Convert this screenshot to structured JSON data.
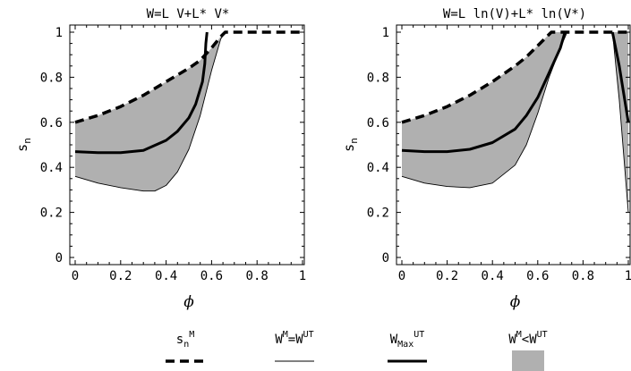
{
  "chart_data": [
    {
      "type": "area",
      "title": "W=L V+L* V*",
      "xlabel": "ϕ",
      "ylabel": "s_n",
      "xlim": [
        0,
        1
      ],
      "ylim": [
        0,
        1
      ],
      "xticks": [
        "0",
        "0.2",
        "0.4",
        "0.6",
        "0.8",
        "1"
      ],
      "yticks": [
        "0",
        "0.2",
        "0.4",
        "0.6",
        "0.8",
        "1"
      ],
      "series": [
        {
          "name": "sn^M",
          "style": "dashed-thick",
          "x": [
            0,
            0.1,
            0.2,
            0.3,
            0.4,
            0.5,
            0.55,
            0.6,
            0.64,
            0.66,
            1.0
          ],
          "y": [
            0.6,
            0.63,
            0.67,
            0.72,
            0.78,
            0.84,
            0.875,
            0.93,
            0.98,
            1.0,
            1.0
          ]
        },
        {
          "name": "W^M=W^UT",
          "style": "thin",
          "x": [
            0,
            0.1,
            0.2,
            0.3,
            0.35,
            0.4,
            0.45,
            0.5,
            0.55,
            0.6,
            0.64,
            0.66
          ],
          "y": [
            0.36,
            0.33,
            0.31,
            0.295,
            0.295,
            0.32,
            0.38,
            0.48,
            0.63,
            0.83,
            0.97,
            1.0
          ]
        },
        {
          "name": "W_Max^UT",
          "style": "thick",
          "x": [
            0,
            0.1,
            0.2,
            0.3,
            0.4,
            0.45,
            0.5,
            0.53,
            0.56,
            0.57,
            0.575,
            0.58
          ],
          "y": [
            0.47,
            0.465,
            0.465,
            0.475,
            0.52,
            0.56,
            0.62,
            0.68,
            0.78,
            0.86,
            0.95,
            1.0
          ]
        }
      ],
      "shaded_region": {
        "name": "W^M<W^UT",
        "x": [
          0,
          0.1,
          0.2,
          0.3,
          0.35,
          0.4,
          0.45,
          0.5,
          0.55,
          0.6,
          0.64,
          0.66
        ],
        "upper": [
          0.6,
          0.63,
          0.67,
          0.72,
          0.75,
          0.78,
          0.81,
          0.84,
          0.875,
          0.93,
          0.98,
          1.0
        ],
        "lower": [
          0.36,
          0.33,
          0.31,
          0.295,
          0.295,
          0.32,
          0.38,
          0.48,
          0.63,
          0.83,
          0.97,
          1.0
        ]
      }
    },
    {
      "type": "area",
      "title": "W=L ln(V)+L* ln(V*)",
      "xlabel": "ϕ",
      "ylabel": "s_n",
      "xlim": [
        0,
        1
      ],
      "ylim": [
        0,
        1
      ],
      "xticks": [
        "0",
        "0.2",
        "0.4",
        "0.6",
        "0.8",
        "1"
      ],
      "yticks": [
        "0",
        "0.2",
        "0.4",
        "0.6",
        "0.8",
        "1"
      ],
      "series": [
        {
          "name": "sn^M",
          "style": "dashed-thick",
          "x": [
            0,
            0.1,
            0.2,
            0.3,
            0.4,
            0.5,
            0.55,
            0.6,
            0.64,
            0.66,
            1.0
          ],
          "y": [
            0.6,
            0.63,
            0.67,
            0.72,
            0.78,
            0.85,
            0.89,
            0.94,
            0.98,
            1.0,
            1.0
          ]
        },
        {
          "name": "W^M=W^UT",
          "style": "thin",
          "x": [
            0,
            0.1,
            0.2,
            0.3,
            0.4,
            0.5,
            0.55,
            0.6,
            0.65,
            0.7,
            0.73
          ],
          "y": [
            0.36,
            0.33,
            0.315,
            0.31,
            0.33,
            0.41,
            0.5,
            0.64,
            0.8,
            0.93,
            1.0
          ]
        },
        {
          "name": "W^M=W^UT (right branch)",
          "style": "thin",
          "x": [
            0.93,
            0.96,
            1.0
          ],
          "y": [
            1.0,
            0.7,
            0.2
          ]
        },
        {
          "name": "W_Max^UT",
          "style": "thick",
          "x": [
            0,
            0.1,
            0.2,
            0.3,
            0.4,
            0.5,
            0.55,
            0.6,
            0.65,
            0.7,
            0.72
          ],
          "y": [
            0.475,
            0.47,
            0.47,
            0.48,
            0.51,
            0.57,
            0.63,
            0.71,
            0.82,
            0.93,
            1.0
          ]
        },
        {
          "name": "W_Max^UT (right branch)",
          "style": "thick",
          "x": [
            0.93,
            0.96,
            1.0
          ],
          "y": [
            1.0,
            0.85,
            0.6
          ]
        }
      ],
      "shaded_region": {
        "name": "W^M<W^UT",
        "x": [
          0,
          0.1,
          0.2,
          0.3,
          0.4,
          0.5,
          0.55,
          0.6,
          0.64,
          0.65,
          0.7,
          0.73
        ],
        "upper": [
          0.6,
          0.63,
          0.67,
          0.72,
          0.78,
          0.85,
          0.89,
          0.94,
          0.98,
          1.0,
          1.0,
          1.0
        ],
        "lower": [
          0.36,
          0.33,
          0.315,
          0.31,
          0.33,
          0.41,
          0.5,
          0.64,
          0.77,
          0.8,
          0.93,
          1.0
        ]
      },
      "shaded_region_2": {
        "name": "W^M<W^UT",
        "x": [
          0.93,
          0.96,
          1.0
        ],
        "upper": [
          1.0,
          1.0,
          1.0
        ],
        "lower": [
          1.0,
          0.7,
          0.2
        ]
      }
    }
  ],
  "legend": {
    "items": [
      {
        "label_main": "s",
        "label_sub": "n",
        "label_sup": "M",
        "style": "dashed-thick"
      },
      {
        "label_main": "W",
        "label_sup": "M",
        "label_mid": "=W",
        "label_sup2": "UT",
        "style": "thin"
      },
      {
        "label_main": "W",
        "label_sub": "Max",
        "label_sup": "UT",
        "style": "thick"
      },
      {
        "label_main": "W",
        "label_sup": "M",
        "label_mid": "<W",
        "label_sup2": "UT",
        "style": "shaded"
      }
    ]
  },
  "colors": {
    "shade": "#b0b0b0",
    "line": "#000000"
  }
}
